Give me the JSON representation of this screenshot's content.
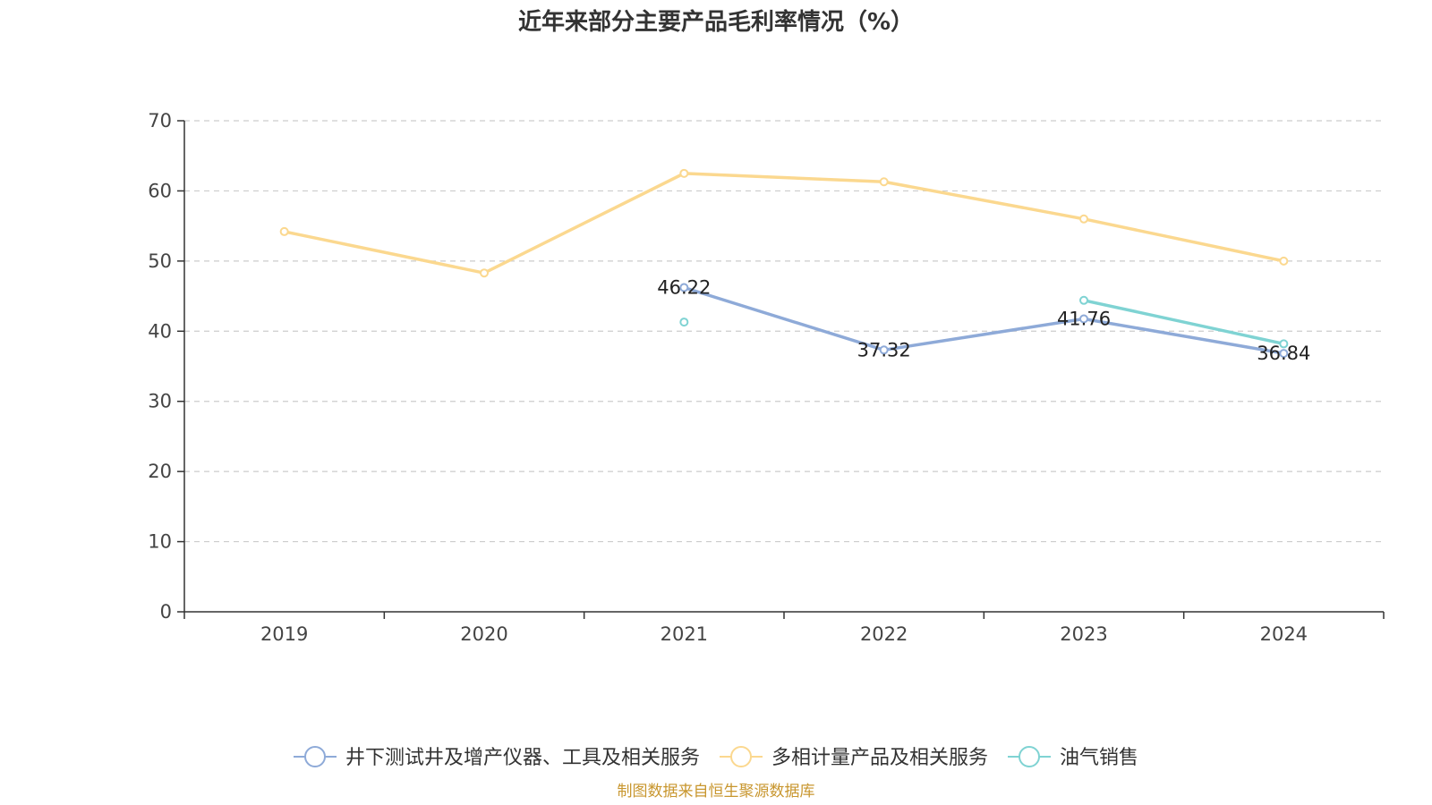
{
  "chart_data": {
    "type": "line",
    "title": "近年来部分主要产品毛利率情况（%）",
    "categories": [
      "2019",
      "2020",
      "2021",
      "2022",
      "2023",
      "2024"
    ],
    "ylim": [
      0,
      70
    ],
    "yticks": [
      0,
      10,
      20,
      30,
      40,
      50,
      60,
      70
    ],
    "grid": true,
    "legend_position": "bottom",
    "series": [
      {
        "name": "井下测试井及增产仪器、工具及相关服务",
        "color": "#8eaad8",
        "values": [
          null,
          null,
          46.22,
          37.32,
          41.76,
          36.84
        ],
        "labels": [
          "",
          "",
          "46.22",
          "37.32",
          "41.76",
          "36.84"
        ]
      },
      {
        "name": "多相计量产品及相关服务",
        "color": "#fbd88f",
        "values": [
          54.2,
          48.3,
          62.5,
          61.3,
          56.0,
          50.0
        ],
        "labels": [
          "",
          "",
          "",
          "",
          "",
          ""
        ]
      },
      {
        "name": "油气销售",
        "color": "#7fd3d3",
        "values": [
          null,
          null,
          41.3,
          null,
          44.4,
          38.2
        ],
        "labels": [
          "",
          "",
          "",
          "",
          "",
          ""
        ]
      }
    ],
    "source": "制图数据来自恒生聚源数据库"
  }
}
